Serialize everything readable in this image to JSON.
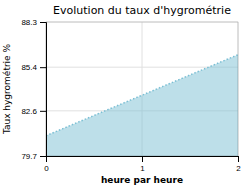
{
  "chart_data": {
    "type": "area",
    "title": "Evolution du taux d'hygrométrie",
    "xlabel": "heure par heure",
    "ylabel": "Taux hygrométrie %",
    "x": [
      0,
      2
    ],
    "values": [
      81.0,
      86.2
    ],
    "color": "#7bbfd4",
    "line_style": "dotted",
    "xlim": [
      0,
      2
    ],
    "ylim": [
      79.7,
      88.3
    ],
    "xticks": [
      0,
      1,
      2
    ],
    "yticks": [
      79.7,
      82.6,
      85.4,
      88.3
    ],
    "grid": true
  }
}
